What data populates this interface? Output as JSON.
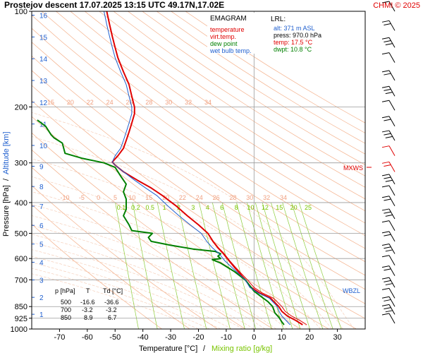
{
  "header": {
    "title": "Prostejov   descent   17.07.2025 13:15 UTC  49.17N,17.02E",
    "copyright": "CHMI © 2025"
  },
  "legend": {
    "heading": "EMAGRAM",
    "items": [
      {
        "label": "temperature",
        "color": "#e00000"
      },
      {
        "label": "virt.temp.",
        "color": "#e00000"
      },
      {
        "label": "dew point",
        "color": "#008000"
      },
      {
        "label": "wet bulb temp.",
        "color": "#1f5fcf"
      }
    ]
  },
  "lrl": {
    "heading": "LRL:",
    "alt": "alt: 371 m ASL",
    "press": "press: 970.0 hPa",
    "temp": "temp: 17.5 °C",
    "dwpt": "dwpt: 10.8 °C"
  },
  "markers": {
    "mxws": "MXWS",
    "wbzl": "WBZL"
  },
  "table": {
    "headers": [
      "p [hPa]",
      "T",
      "Td [°C]"
    ],
    "rows": [
      [
        "500",
        "-16.6",
        "-36.6"
      ],
      [
        "700",
        "-3.2",
        "-3.2"
      ],
      [
        "850",
        "8.9",
        "6.7"
      ]
    ]
  },
  "axes": {
    "xlabel": "Temperature [°C]",
    "xlabel_sep": "/",
    "xlabel2": "Mixing ratio [g/kg]",
    "ylabel": "Pressure [hPa]",
    "ylabel_sep": "/",
    "ylabel2": "Altitude [km]"
  },
  "colors": {
    "temperature": "#e00000",
    "dewpoint": "#008000",
    "wetbulb": "#1f5fcf",
    "dry_adiabat": "#f4b08a",
    "moist_adiabat": "#f4c8b0",
    "mixing_ratio": "#8ccc3a",
    "isotherm": "#c8c8c8",
    "altitude": "#1f5fcf"
  },
  "chart_data": {
    "type": "line",
    "title": "Prostejov   descent   17.07.2025 13:15 UTC  49.17N,17.02E",
    "xlabel": "Temperature [°C]",
    "ylabel": "Pressure [hPa]",
    "xlim": [
      -80,
      40
    ],
    "ylim": [
      1000,
      100
    ],
    "y_scale": "log",
    "x_ticks": [
      -70,
      -60,
      -50,
      -40,
      -30,
      -20,
      -10,
      0,
      10,
      20,
      30
    ],
    "y_ticks": [
      100,
      200,
      300,
      400,
      500,
      600,
      700,
      850,
      925,
      1000
    ],
    "altitude_ticks_km": [
      1,
      2,
      3,
      4,
      5,
      6,
      7,
      8,
      9,
      10,
      11,
      12,
      13,
      14,
      15,
      16
    ],
    "mixing_ratio_labels_upper": [
      "15",
      "20",
      "22",
      "24",
      "26",
      "28",
      "30",
      "32",
      "34"
    ],
    "mixing_ratio_labels_mid": [
      "-10",
      "-5",
      "0",
      "5",
      "10",
      "15",
      "20",
      "22",
      "24",
      "26",
      "28",
      "30",
      "32",
      "34"
    ],
    "mixing_ratio_labels_lower": [
      "0.1",
      "0.2",
      "0.5",
      "1",
      "2",
      "3",
      "4",
      "6",
      "8",
      "10",
      "12",
      "15",
      "20",
      "25"
    ],
    "series": [
      {
        "name": "temperature",
        "points": [
          [
            17.5,
            970
          ],
          [
            15,
            940
          ],
          [
            12,
            910
          ],
          [
            10,
            880
          ],
          [
            8.9,
            850
          ],
          [
            6,
            800
          ],
          [
            2,
            770
          ],
          [
            -1,
            740
          ],
          [
            -3.2,
            700
          ],
          [
            -5,
            670
          ],
          [
            -7,
            640
          ],
          [
            -9,
            610
          ],
          [
            -11,
            580
          ],
          [
            -13,
            555
          ],
          [
            -14.8,
            530
          ],
          [
            -16.6,
            500
          ],
          [
            -20,
            470
          ],
          [
            -24,
            440
          ],
          [
            -28,
            410
          ],
          [
            -33,
            380
          ],
          [
            -37,
            360
          ],
          [
            -42,
            340
          ],
          [
            -47,
            320
          ],
          [
            -50,
            305
          ],
          [
            -51,
            298
          ],
          [
            -49,
            285
          ],
          [
            -47,
            270
          ],
          [
            -46,
            255
          ],
          [
            -45,
            240
          ],
          [
            -44,
            225
          ],
          [
            -43,
            210
          ],
          [
            -43,
            200
          ],
          [
            -44,
            185
          ],
          [
            -45,
            170
          ],
          [
            -47,
            155
          ],
          [
            -49,
            140
          ],
          [
            -50,
            130
          ],
          [
            -51,
            120
          ],
          [
            -52,
            110
          ],
          [
            -53,
            100
          ]
        ]
      },
      {
        "name": "virt.temp.",
        "points": [
          [
            19,
            970
          ],
          [
            16.5,
            940
          ],
          [
            13.5,
            910
          ],
          [
            11.2,
            880
          ],
          [
            10,
            850
          ],
          [
            7,
            800
          ],
          [
            3,
            770
          ],
          [
            0,
            740
          ],
          [
            -2.4,
            700
          ],
          [
            -4.5,
            670
          ],
          [
            -6.6,
            640
          ],
          [
            -8.7,
            610
          ],
          [
            -10.7,
            580
          ],
          [
            -12.8,
            555
          ],
          [
            -14.6,
            530
          ],
          [
            -16.5,
            500
          ],
          [
            -20,
            470
          ],
          [
            -24,
            440
          ],
          [
            -28,
            410
          ],
          [
            -33,
            380
          ],
          [
            -37,
            360
          ],
          [
            -42,
            340
          ],
          [
            -47,
            320
          ],
          [
            -50,
            305
          ],
          [
            -51,
            298
          ],
          [
            -49,
            285
          ],
          [
            -47,
            270
          ],
          [
            -46,
            255
          ],
          [
            -45,
            240
          ],
          [
            -44,
            225
          ],
          [
            -43,
            210
          ],
          [
            -43,
            200
          ],
          [
            -44,
            185
          ],
          [
            -45,
            170
          ],
          [
            -47,
            155
          ],
          [
            -49,
            140
          ],
          [
            -50,
            130
          ],
          [
            -51,
            120
          ],
          [
            -52,
            110
          ],
          [
            -53,
            100
          ]
        ]
      },
      {
        "name": "dew point",
        "points": [
          [
            10.8,
            970
          ],
          [
            10,
            950
          ],
          [
            9,
            920
          ],
          [
            7.5,
            890
          ],
          [
            6.7,
            850
          ],
          [
            5,
            820
          ],
          [
            2.5,
            790
          ],
          [
            0,
            760
          ],
          [
            -3.2,
            700
          ],
          [
            -7,
            660
          ],
          [
            -12,
            620
          ],
          [
            -15,
            605
          ],
          [
            -12,
            600
          ],
          [
            -13,
            590
          ],
          [
            -12,
            580
          ],
          [
            -14,
            570
          ],
          [
            -22,
            560
          ],
          [
            -30,
            545
          ],
          [
            -37,
            530
          ],
          [
            -38,
            515
          ],
          [
            -36.6,
            500
          ],
          [
            -44,
            490
          ],
          [
            -45,
            470
          ],
          [
            -47,
            440
          ],
          [
            -46,
            420
          ],
          [
            -46,
            390
          ],
          [
            -47,
            370
          ],
          [
            -46,
            350
          ],
          [
            -48,
            330
          ],
          [
            -50,
            310
          ],
          [
            -54,
            300
          ],
          [
            -62,
            290
          ],
          [
            -68,
            280
          ],
          [
            -69,
            260
          ],
          [
            -72,
            250
          ],
          [
            -73,
            245
          ],
          [
            -75,
            230
          ],
          [
            -78,
            220
          ]
        ]
      },
      {
        "name": "wet bulb temp.",
        "points": [
          [
            13,
            970
          ],
          [
            11.5,
            940
          ],
          [
            10,
            910
          ],
          [
            9,
            880
          ],
          [
            8.4,
            850
          ],
          [
            5.5,
            800
          ],
          [
            1.5,
            770
          ],
          [
            -1.5,
            740
          ],
          [
            -3.2,
            700
          ],
          [
            -5.5,
            670
          ],
          [
            -8,
            640
          ],
          [
            -10.5,
            610
          ],
          [
            -12.5,
            580
          ],
          [
            -15,
            555
          ],
          [
            -17,
            530
          ],
          [
            -19,
            500
          ],
          [
            -23,
            470
          ],
          [
            -27,
            440
          ],
          [
            -31,
            410
          ],
          [
            -35,
            380
          ],
          [
            -39,
            360
          ],
          [
            -43,
            340
          ],
          [
            -47,
            320
          ],
          [
            -50,
            305
          ],
          [
            -51,
            298
          ],
          [
            -50,
            285
          ],
          [
            -48,
            270
          ],
          [
            -47,
            255
          ],
          [
            -46,
            240
          ],
          [
            -45,
            225
          ],
          [
            -44,
            210
          ],
          [
            -44,
            200
          ],
          [
            -45,
            185
          ],
          [
            -46,
            170
          ],
          [
            -48,
            155
          ],
          [
            -50,
            140
          ],
          [
            -51,
            130
          ],
          [
            -52,
            120
          ],
          [
            -53,
            110
          ],
          [
            -54,
            100
          ]
        ]
      }
    ],
    "wind_profile_levels_hpa": [
      100,
      115,
      130,
      145,
      165,
      185,
      205,
      230,
      255,
      285,
      320,
      350,
      380,
      410,
      450,
      490,
      530,
      580,
      630,
      680,
      740,
      800,
      850,
      900,
      960
    ]
  }
}
